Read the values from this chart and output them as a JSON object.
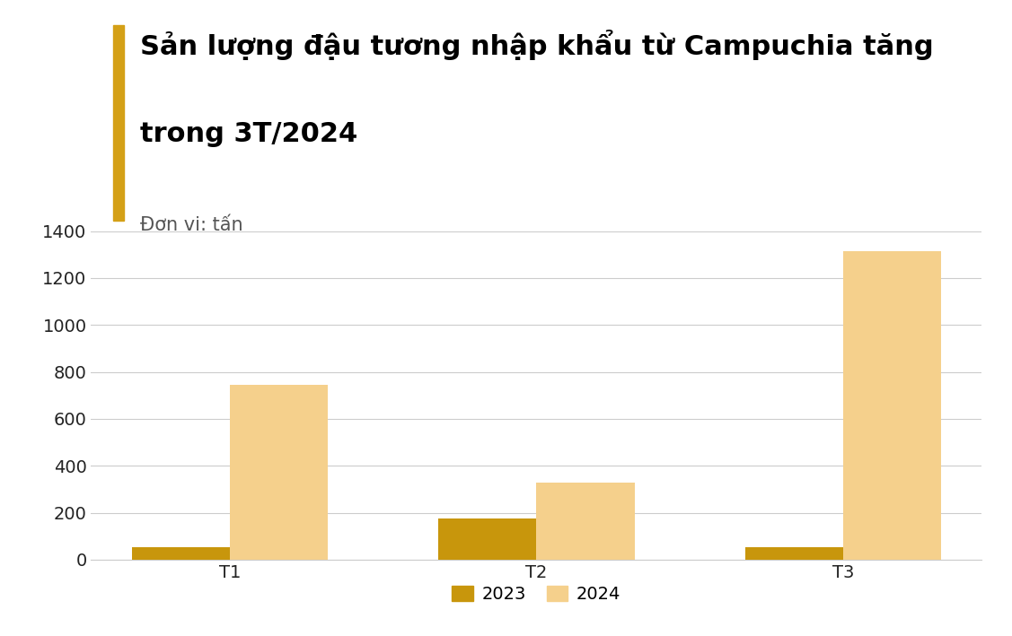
{
  "title_line1": "Sản lượng đậu tương nhập khẩu từ Campuchia tăng",
  "title_line2": "trong 3T/2024",
  "subtitle": "Đơn vị: tấn",
  "categories": [
    "T1",
    "T2",
    "T3"
  ],
  "values_2023": [
    55,
    175,
    55
  ],
  "values_2024": [
    745,
    330,
    1315
  ],
  "color_2023": "#C8960C",
  "color_2024": "#F5D08C",
  "ylim": [
    0,
    1400
  ],
  "yticks": [
    0,
    200,
    400,
    600,
    800,
    1000,
    1200,
    1400
  ],
  "legend_labels": [
    "2023",
    "2024"
  ],
  "bar_width": 0.32,
  "background_color": "#ffffff",
  "title_fontsize": 22,
  "subtitle_fontsize": 15,
  "tick_fontsize": 14,
  "legend_fontsize": 14,
  "accent_color": "#D4A017",
  "title_color": "#000000",
  "subtitle_color": "#555555",
  "grid_color": "#cccccc"
}
